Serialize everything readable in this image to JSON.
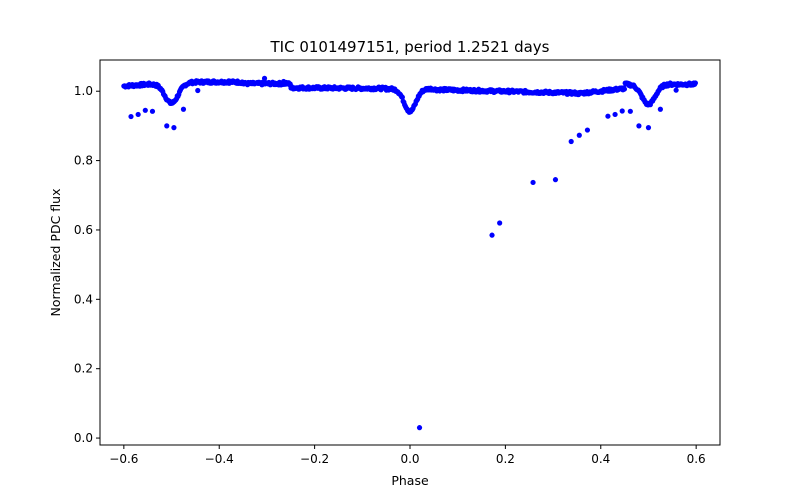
{
  "chart_data": {
    "type": "scatter",
    "title": "TIC 0101497151, period 1.2521 days",
    "xlabel": "Phase",
    "ylabel": "Normalized PDC flux",
    "xlim": [
      -0.65,
      0.65
    ],
    "ylim": [
      -0.02,
      1.09
    ],
    "xticks": [
      -0.6,
      -0.4,
      -0.2,
      0.0,
      0.2,
      0.4,
      0.6
    ],
    "xtick_labels": [
      "−0.6",
      "−0.4",
      "−0.2",
      "0.0",
      "0.2",
      "0.4",
      "0.6"
    ],
    "yticks": [
      0.0,
      0.2,
      0.4,
      0.6,
      0.8,
      1.0
    ],
    "ytick_labels": [
      "0.0",
      "0.2",
      "0.4",
      "0.6",
      "0.8",
      "1.0"
    ],
    "marker_color": "#0000ff",
    "series": [
      {
        "name": "PDC flux",
        "baseline_phase_range": [
          -0.6,
          0.6
        ],
        "primary_eclipse": {
          "phase": 0.0,
          "min_flux": 0.935,
          "halfwidth": 0.022
        },
        "secondary_eclipses": [
          {
            "phase": -0.5,
            "min_flux": 0.942,
            "halfwidth": 0.025
          },
          {
            "phase": 0.5,
            "min_flux": 0.942,
            "halfwidth": 0.025
          }
        ],
        "scattered_points": [
          {
            "x": -0.585,
            "y": 0.927
          },
          {
            "x": -0.57,
            "y": 0.933
          },
          {
            "x": -0.555,
            "y": 0.945
          },
          {
            "x": -0.54,
            "y": 0.942
          },
          {
            "x": -0.51,
            "y": 0.9
          },
          {
            "x": -0.495,
            "y": 0.895
          },
          {
            "x": -0.475,
            "y": 0.948
          },
          {
            "x": -0.445,
            "y": 1.002
          },
          {
            "x": 0.02,
            "y": 0.03
          },
          {
            "x": 0.172,
            "y": 0.585
          },
          {
            "x": 0.188,
            "y": 0.62
          },
          {
            "x": 0.258,
            "y": 0.737
          },
          {
            "x": 0.305,
            "y": 0.745
          },
          {
            "x": 0.338,
            "y": 0.855
          },
          {
            "x": 0.355,
            "y": 0.873
          },
          {
            "x": 0.372,
            "y": 0.888
          },
          {
            "x": 0.415,
            "y": 0.928
          },
          {
            "x": 0.43,
            "y": 0.933
          },
          {
            "x": 0.445,
            "y": 0.943
          },
          {
            "x": 0.462,
            "y": 0.942
          },
          {
            "x": 0.48,
            "y": 0.9
          },
          {
            "x": 0.5,
            "y": 0.895
          },
          {
            "x": 0.525,
            "y": 0.948
          },
          {
            "x": 0.558,
            "y": 1.003
          },
          {
            "x": 0.592,
            "y": 1.018
          },
          {
            "x": -0.305,
            "y": 1.037
          },
          {
            "x": -0.38,
            "y": 1.03
          },
          {
            "x": -0.265,
            "y": 1.028
          }
        ]
      }
    ]
  }
}
